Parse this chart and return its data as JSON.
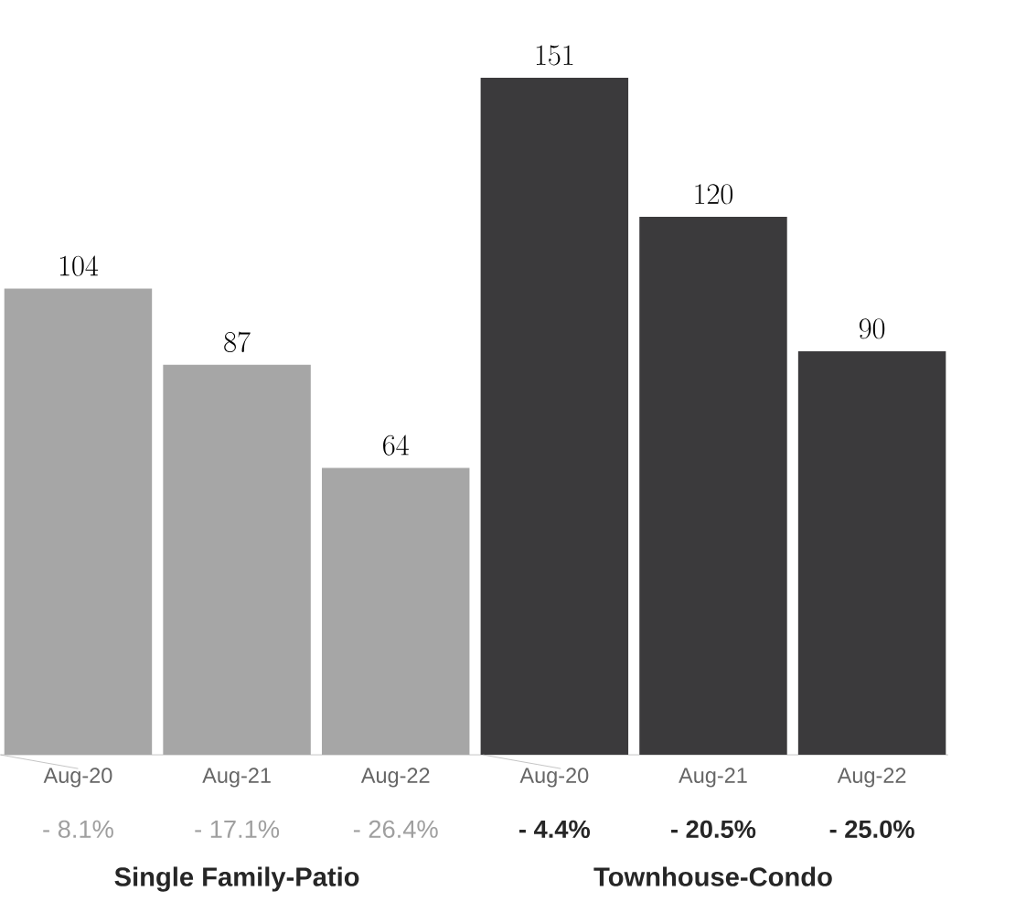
{
  "chart_data": {
    "type": "bar",
    "categories": [
      "Aug-20",
      "Aug-21",
      "Aug-22",
      "Aug-20",
      "Aug-21",
      "Aug-22"
    ],
    "values": [
      104,
      87,
      64,
      151,
      120,
      90
    ],
    "colors": [
      "#a6a6a6",
      "#a6a6a6",
      "#a6a6a6",
      "#3b3a3c",
      "#3b3a3c",
      "#3b3a3c"
    ],
    "data_labels": true,
    "annotations": [
      "- 8.1%",
      "- 17.1%",
      "- 26.4%",
      "- 4.4%",
      "- 20.5%",
      "- 25.0%",
      "Single Family-Patio",
      "Townhouse-Condo"
    ]
  }
}
